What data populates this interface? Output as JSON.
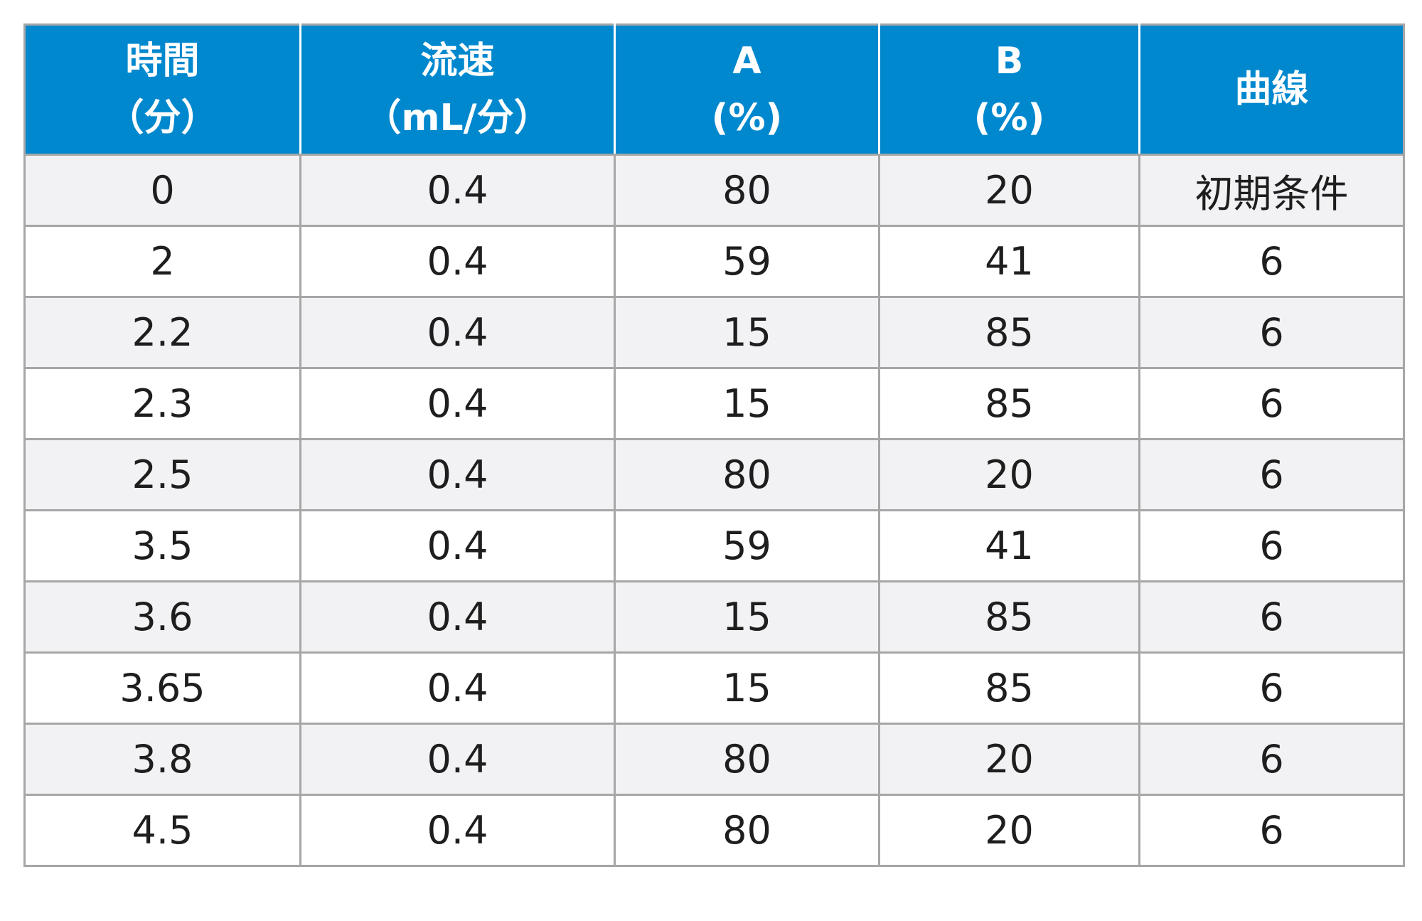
{
  "table": {
    "headers": [
      {
        "line1": "時間",
        "line2": "（分）"
      },
      {
        "line1": "流速",
        "line2": "（mL/分）"
      },
      {
        "line1": "A",
        "line2": "(%)"
      },
      {
        "line1": "B",
        "line2": "(%)"
      },
      {
        "line1": "曲線",
        "line2": ""
      }
    ],
    "rows": [
      [
        "0",
        "0.4",
        "80",
        "20",
        "初期条件"
      ],
      [
        "2",
        "0.4",
        "59",
        "41",
        "6"
      ],
      [
        "2.2",
        "0.4",
        "15",
        "85",
        "6"
      ],
      [
        "2.3",
        "0.4",
        "15",
        "85",
        "6"
      ],
      [
        "2.5",
        "0.4",
        "80",
        "20",
        "6"
      ],
      [
        "3.5",
        "0.4",
        "59",
        "41",
        "6"
      ],
      [
        "3.6",
        "0.4",
        "15",
        "85",
        "6"
      ],
      [
        "3.65",
        "0.4",
        "15",
        "85",
        "6"
      ],
      [
        "3.8",
        "0.4",
        "80",
        "20",
        "6"
      ],
      [
        "4.5",
        "0.4",
        "80",
        "20",
        "6"
      ]
    ]
  },
  "colors": {
    "header_bg": "#0088ce",
    "header_text": "#ffffff",
    "row_alt_bg": "#f2f2f4",
    "border": "#a6a6a6"
  }
}
